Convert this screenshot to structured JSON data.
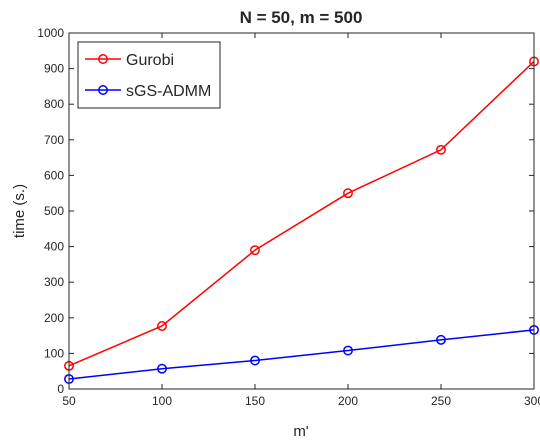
{
  "chart_data": {
    "type": "line",
    "title": "N = 50,  m = 500",
    "xlabel": "m'",
    "ylabel": "time (s.)",
    "x": [
      50,
      100,
      150,
      200,
      250,
      300
    ],
    "xlim": [
      50,
      300
    ],
    "ylim": [
      0,
      1000
    ],
    "xticks": [
      "50",
      "100",
      "150",
      "200",
      "250",
      "300"
    ],
    "yticks": [
      "0",
      "100",
      "200",
      "300",
      "400",
      "500",
      "600",
      "700",
      "800",
      "900",
      "1000"
    ],
    "grid": false,
    "legend_position": "top-left",
    "series": [
      {
        "name": "Gurobi",
        "color": "#ff0000",
        "marker": "circle",
        "values": [
          65,
          177,
          390,
          550,
          672,
          920
        ]
      },
      {
        "name": "sGS-ADMM",
        "color": "#0000ff",
        "marker": "circle",
        "values": [
          28,
          57,
          80,
          108,
          138,
          166
        ]
      }
    ]
  }
}
